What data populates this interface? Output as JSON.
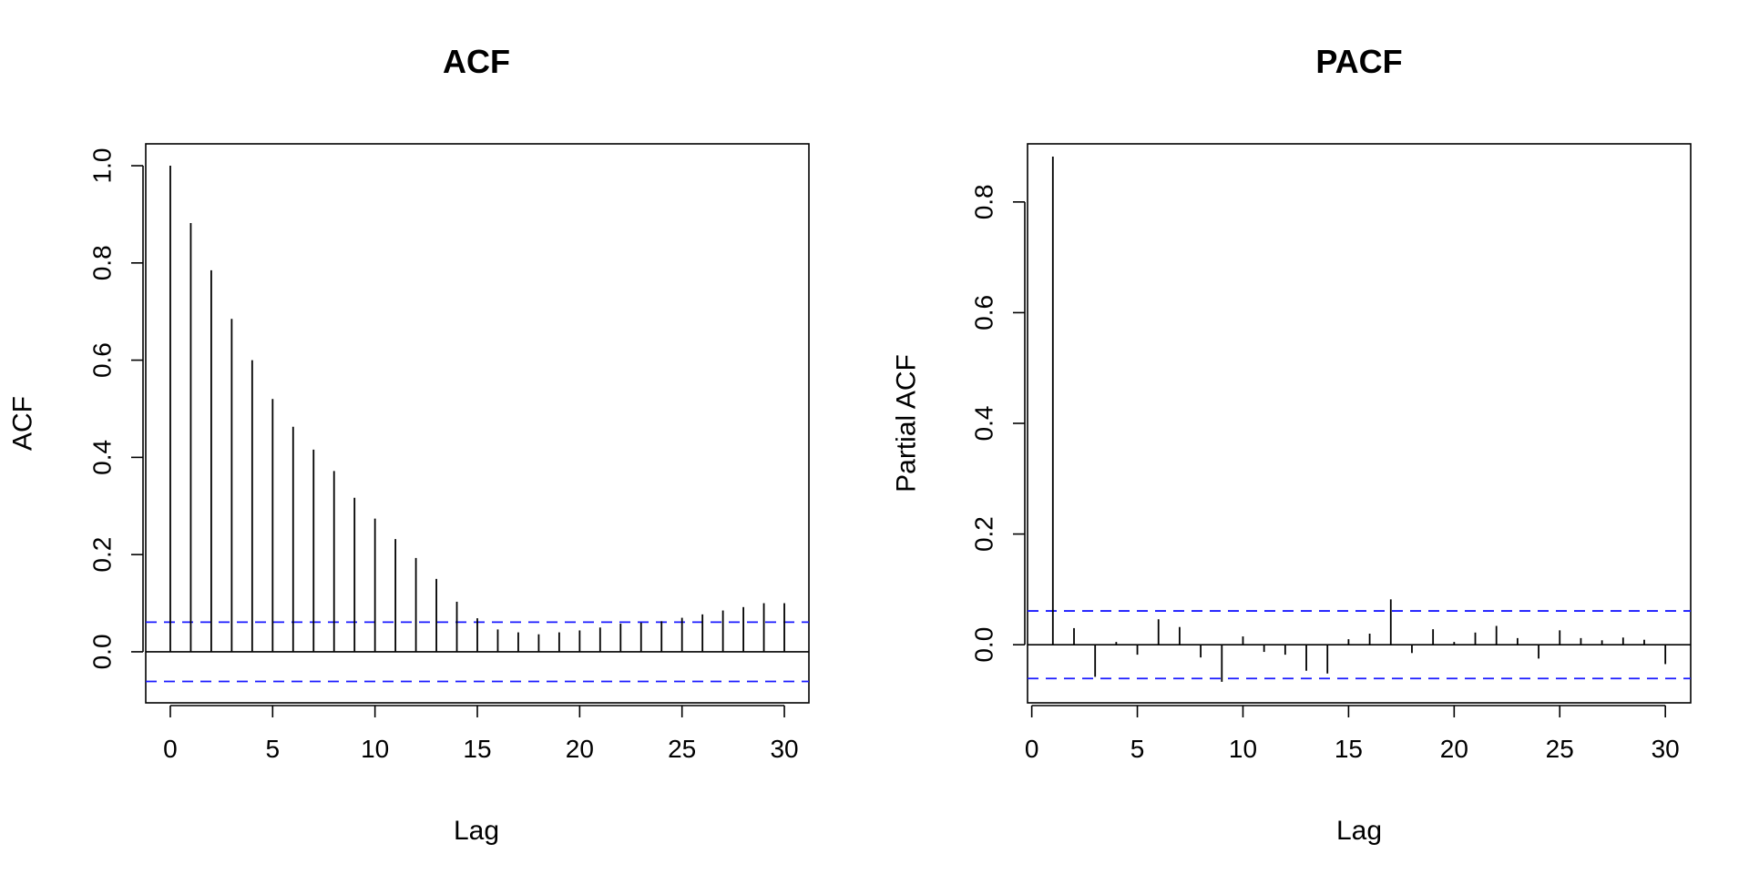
{
  "chart_data": [
    {
      "type": "bar",
      "subtype": "acf-stem",
      "title": "ACF",
      "xlabel": "Lag",
      "ylabel": "ACF",
      "xlim": [
        -1.2,
        31.2
      ],
      "ylim": [
        -0.105,
        1.045
      ],
      "xticks": [
        "0",
        "5",
        "10",
        "15",
        "20",
        "25",
        "30"
      ],
      "yticks": [
        "0.0",
        "0.2",
        "0.4",
        "0.6",
        "0.8",
        "1.0"
      ],
      "confidence_band": [
        0.061,
        -0.061
      ],
      "band_color": "#1a1aff",
      "grid": false,
      "lags": [
        0,
        1,
        2,
        3,
        4,
        5,
        6,
        7,
        8,
        9,
        10,
        11,
        12,
        13,
        14,
        15,
        16,
        17,
        18,
        19,
        20,
        21,
        22,
        23,
        24,
        25,
        26,
        27,
        28,
        29,
        30
      ],
      "values": [
        1.0,
        0.882,
        0.785,
        0.685,
        0.6,
        0.52,
        0.463,
        0.416,
        0.372,
        0.317,
        0.274,
        0.232,
        0.193,
        0.15,
        0.103,
        0.069,
        0.046,
        0.04,
        0.036,
        0.04,
        0.044,
        0.05,
        0.058,
        0.06,
        0.063,
        0.07,
        0.077,
        0.085,
        0.092,
        0.1,
        0.1
      ]
    },
    {
      "type": "bar",
      "subtype": "pacf-stem",
      "title": "PACF",
      "xlabel": "Lag",
      "ylabel": "Partial ACF",
      "xlim": [
        -0.2,
        31.2
      ],
      "ylim": [
        -0.105,
        0.905
      ],
      "xticks": [
        "0",
        "5",
        "10",
        "15",
        "20",
        "25",
        "30"
      ],
      "yticks": [
        "0.0",
        "0.2",
        "0.4",
        "0.6",
        "0.8"
      ],
      "confidence_band": [
        0.061,
        -0.061
      ],
      "band_color": "#1a1aff",
      "grid": false,
      "lags": [
        1,
        2,
        3,
        4,
        5,
        6,
        7,
        8,
        9,
        10,
        11,
        12,
        13,
        14,
        15,
        16,
        17,
        18,
        19,
        20,
        21,
        22,
        23,
        24,
        25,
        26,
        27,
        28,
        29,
        30
      ],
      "values": [
        0.882,
        0.03,
        -0.058,
        0.005,
        -0.018,
        0.046,
        0.032,
        -0.023,
        -0.067,
        0.015,
        -0.013,
        -0.018,
        -0.047,
        -0.052,
        0.01,
        0.02,
        0.082,
        -0.015,
        0.028,
        0.005,
        0.022,
        0.034,
        0.012,
        -0.025,
        0.026,
        0.012,
        0.008,
        0.013,
        0.009,
        -0.035
      ]
    }
  ]
}
